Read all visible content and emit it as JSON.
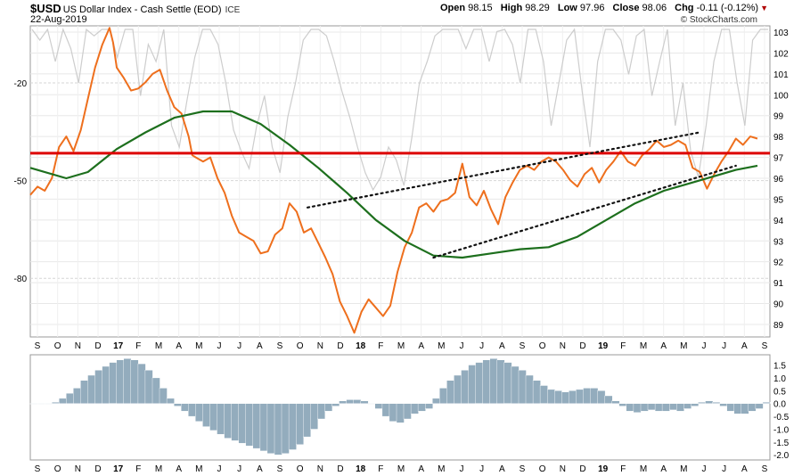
{
  "header": {
    "symbol": "$USD",
    "name": "US Dollar Index - Cash Settle (EOD)",
    "exchange": "ICE",
    "date": "22-Aug-2019",
    "open_label": "Open",
    "open": "98.15",
    "high_label": "High",
    "high": "98.29",
    "low_label": "Low",
    "low": "97.96",
    "close_label": "Close",
    "close": "98.06",
    "chg_label": "Chg",
    "chg": "-0.11 (-0.12%)",
    "credit": "© StockCharts.com"
  },
  "colors": {
    "price": "#ee6f1d",
    "ma": "#1d6f1d",
    "resistance": "#dd0000",
    "gray_indicator": "#c8c8c8",
    "histogram": "#93acbd",
    "trendline": "#111111",
    "grid": "#e8e8e8"
  },
  "chart_data": [
    {
      "type": "line",
      "title": "$USD US Dollar Index - Cash Settle (EOD)",
      "x_axis_labels": [
        "S",
        "O",
        "N",
        "D",
        "17",
        "F",
        "M",
        "A",
        "M",
        "J",
        "J",
        "A",
        "S",
        "O",
        "N",
        "D",
        "18",
        "F",
        "M",
        "A",
        "M",
        "J",
        "J",
        "A",
        "S",
        "O",
        "N",
        "D",
        "19",
        "F",
        "M",
        "A",
        "M",
        "J",
        "J",
        "A",
        "S"
      ],
      "y_right_ticks": [
        "103",
        "102",
        "101",
        "100",
        "99",
        "98",
        "97",
        "96",
        "95",
        "94",
        "93",
        "92",
        "91",
        "90",
        "89"
      ],
      "y_left_ticks": [
        "-20",
        "-50",
        "-80"
      ],
      "ylim_right": [
        88.4,
        103.3
      ],
      "ylim_left": [
        -98,
        -2.5
      ],
      "series": [
        {
          "role": "price",
          "points": [
            [
              0,
              95.2
            ],
            [
              1,
              95.6
            ],
            [
              2,
              95.4
            ],
            [
              3,
              96.0
            ],
            [
              4,
              97.5
            ],
            [
              5,
              98.0
            ],
            [
              6,
              97.3
            ],
            [
              7,
              98.3
            ],
            [
              8,
              99.8
            ],
            [
              9,
              101.3
            ],
            [
              10,
              102.4
            ],
            [
              11,
              103.2
            ],
            [
              11.5,
              102.5
            ],
            [
              12,
              101.3
            ],
            [
              13,
              100.8
            ],
            [
              14,
              100.2
            ],
            [
              15,
              100.3
            ],
            [
              16,
              100.6
            ],
            [
              17,
              101.0
            ],
            [
              18,
              101.2
            ],
            [
              19,
              100.2
            ],
            [
              20,
              99.4
            ],
            [
              21,
              99.1
            ],
            [
              22,
              98.0
            ],
            [
              22.5,
              97.1
            ],
            [
              23,
              97.0
            ],
            [
              24,
              96.8
            ],
            [
              25,
              97.0
            ],
            [
              26,
              96.0
            ],
            [
              27,
              95.3
            ],
            [
              28,
              94.2
            ],
            [
              29,
              93.4
            ],
            [
              30,
              93.2
            ],
            [
              31,
              93.0
            ],
            [
              32,
              92.4
            ],
            [
              33,
              92.5
            ],
            [
              34,
              93.3
            ],
            [
              35,
              93.6
            ],
            [
              36,
              94.8
            ],
            [
              37,
              94.4
            ],
            [
              38,
              93.4
            ],
            [
              39,
              93.6
            ],
            [
              40,
              92.9
            ],
            [
              41,
              92.2
            ],
            [
              42,
              91.4
            ],
            [
              43,
              90.1
            ],
            [
              44,
              89.4
            ],
            [
              45,
              88.6
            ],
            [
              46,
              89.6
            ],
            [
              47,
              90.2
            ],
            [
              48,
              89.8
            ],
            [
              49,
              89.4
            ],
            [
              50,
              89.9
            ],
            [
              51,
              91.5
            ],
            [
              52,
              92.7
            ],
            [
              53,
              93.4
            ],
            [
              54,
              94.6
            ],
            [
              55,
              94.8
            ],
            [
              56,
              94.4
            ],
            [
              57,
              94.9
            ],
            [
              58,
              95.0
            ],
            [
              59,
              95.3
            ],
            [
              60,
              96.7
            ],
            [
              61,
              95.1
            ],
            [
              62,
              94.7
            ],
            [
              63,
              95.4
            ],
            [
              64,
              94.5
            ],
            [
              65,
              93.8
            ],
            [
              66,
              95.1
            ],
            [
              67,
              95.8
            ],
            [
              68,
              96.4
            ],
            [
              69,
              96.6
            ],
            [
              70,
              96.4
            ],
            [
              71,
              96.8
            ],
            [
              72,
              97.0
            ],
            [
              73,
              96.8
            ],
            [
              74,
              96.4
            ],
            [
              75,
              95.9
            ],
            [
              76,
              95.6
            ],
            [
              77,
              96.2
            ],
            [
              78,
              96.5
            ],
            [
              79,
              95.8
            ],
            [
              80,
              96.4
            ],
            [
              81,
              96.8
            ],
            [
              82,
              97.3
            ],
            [
              83,
              96.8
            ],
            [
              84,
              96.6
            ],
            [
              85,
              97.1
            ],
            [
              86,
              97.4
            ],
            [
              87,
              97.8
            ],
            [
              88,
              97.5
            ],
            [
              89,
              97.6
            ],
            [
              90,
              97.8
            ],
            [
              91,
              97.6
            ],
            [
              92,
              96.5
            ],
            [
              93,
              96.3
            ],
            [
              94,
              95.5
            ],
            [
              95,
              96.2
            ],
            [
              96,
              96.8
            ],
            [
              97,
              97.3
            ],
            [
              98,
              97.9
            ],
            [
              99,
              97.6
            ],
            [
              100,
              98.0
            ],
            [
              101,
              97.9
            ]
          ]
        },
        {
          "role": "moving-average",
          "points": [
            [
              0,
              96.5
            ],
            [
              5,
              96.0
            ],
            [
              8,
              96.3
            ],
            [
              12,
              97.4
            ],
            [
              16,
              98.2
            ],
            [
              20,
              98.9
            ],
            [
              24,
              99.2
            ],
            [
              28,
              99.2
            ],
            [
              32,
              98.6
            ],
            [
              36,
              97.6
            ],
            [
              40,
              96.5
            ],
            [
              44,
              95.3
            ],
            [
              48,
              94.0
            ],
            [
              52,
              93.0
            ],
            [
              56,
              92.3
            ],
            [
              60,
              92.2
            ],
            [
              64,
              92.4
            ],
            [
              68,
              92.6
            ],
            [
              72,
              92.7
            ],
            [
              76,
              93.2
            ],
            [
              80,
              94.0
            ],
            [
              84,
              94.8
            ],
            [
              88,
              95.4
            ],
            [
              92,
              95.8
            ],
            [
              96,
              96.2
            ],
            [
              98,
              96.4
            ],
            [
              101,
              96.6
            ]
          ]
        },
        {
          "role": "resistance",
          "value": 97.2,
          "x_range": [
            0,
            101
          ]
        },
        {
          "role": "trendline-upper",
          "points": [
            [
              38.5,
              94.6
            ],
            [
              93,
              98.2
            ]
          ]
        },
        {
          "role": "trendline-lower",
          "points": [
            [
              56,
              92.2
            ],
            [
              98,
              96.6
            ]
          ]
        }
      ]
    },
    {
      "type": "bar",
      "title": "",
      "x_axis_labels": [
        "S",
        "O",
        "N",
        "D",
        "17",
        "F",
        "M",
        "A",
        "M",
        "J",
        "J",
        "A",
        "S",
        "O",
        "N",
        "D",
        "18",
        "F",
        "M",
        "A",
        "M",
        "J",
        "J",
        "A",
        "S",
        "O",
        "N",
        "D",
        "19",
        "F",
        "M",
        "A",
        "M",
        "J",
        "J",
        "A",
        "S"
      ],
      "y_ticks": [
        "1.5",
        "1.0",
        "0.5",
        "0.0",
        "-0.5",
        "-1.0",
        "-1.5",
        "-2.0"
      ],
      "ylim": [
        -2.2,
        1.9
      ],
      "values": [
        0.0,
        0.0,
        0.0,
        0.05,
        0.2,
        0.4,
        0.6,
        0.9,
        1.1,
        1.3,
        1.45,
        1.6,
        1.7,
        1.75,
        1.7,
        1.55,
        1.3,
        1.0,
        0.6,
        0.2,
        -0.1,
        -0.3,
        -0.5,
        -0.7,
        -0.9,
        -1.05,
        -1.2,
        -1.35,
        -1.45,
        -1.55,
        -1.65,
        -1.75,
        -1.85,
        -1.95,
        -2.0,
        -1.95,
        -1.8,
        -1.6,
        -1.3,
        -1.0,
        -0.6,
        -0.3,
        -0.1,
        0.1,
        0.15,
        0.15,
        0.1,
        0.0,
        -0.2,
        -0.5,
        -0.7,
        -0.75,
        -0.6,
        -0.4,
        -0.3,
        -0.2,
        0.2,
        0.6,
        0.9,
        1.1,
        1.3,
        1.5,
        1.6,
        1.7,
        1.75,
        1.7,
        1.6,
        1.45,
        1.3,
        1.1,
        0.9,
        0.7,
        0.55,
        0.5,
        0.45,
        0.5,
        0.55,
        0.6,
        0.6,
        0.5,
        0.3,
        0.1,
        -0.1,
        -0.3,
        -0.35,
        -0.3,
        -0.25,
        -0.3,
        -0.3,
        -0.25,
        -0.3,
        -0.2,
        -0.1,
        0.05,
        0.1,
        0.05,
        -0.1,
        -0.3,
        -0.4,
        -0.4,
        -0.3,
        -0.2,
        0.05
      ]
    }
  ]
}
